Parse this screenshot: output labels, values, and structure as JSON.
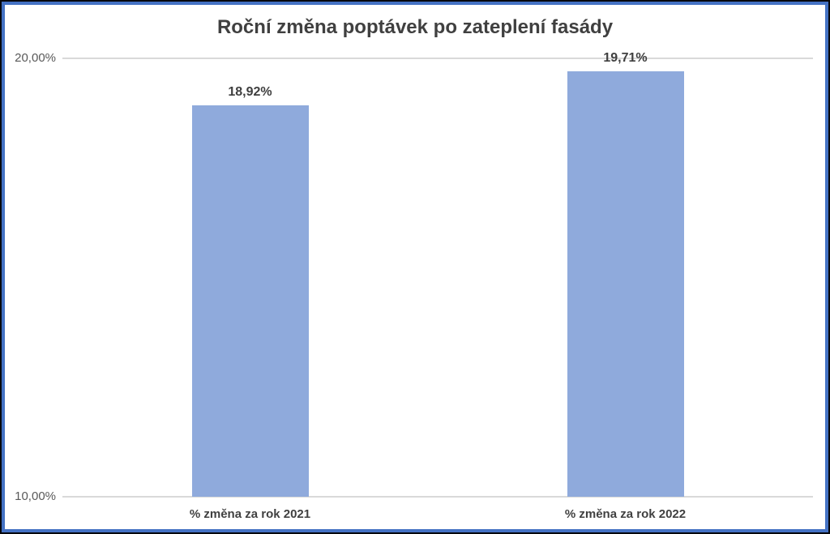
{
  "chart_data": {
    "type": "bar",
    "title": "Roční změna poptávek po zateplení fasády",
    "categories": [
      "% změna za rok 2021",
      "% změna za rok 2022"
    ],
    "values": [
      18.92,
      19.71
    ],
    "value_labels": [
      "18,92%",
      "19,71%"
    ],
    "ylim": [
      10,
      20
    ],
    "y_ticks": [
      {
        "value": 20,
        "label": "20,00%"
      },
      {
        "value": 10,
        "label": "10,00%"
      }
    ],
    "xlabel": "",
    "ylabel": "",
    "legend": "none",
    "grid": "horizontal lines at 10% and 20% only",
    "bar_color": "#8FAADC",
    "gridline_color": "#D9D9D9",
    "frame_border_color": "#4472C4",
    "title_color": "#404040",
    "value_label_color": "#3f3f3f",
    "category_label_color": "#404040",
    "tick_label_color": "#595959"
  }
}
